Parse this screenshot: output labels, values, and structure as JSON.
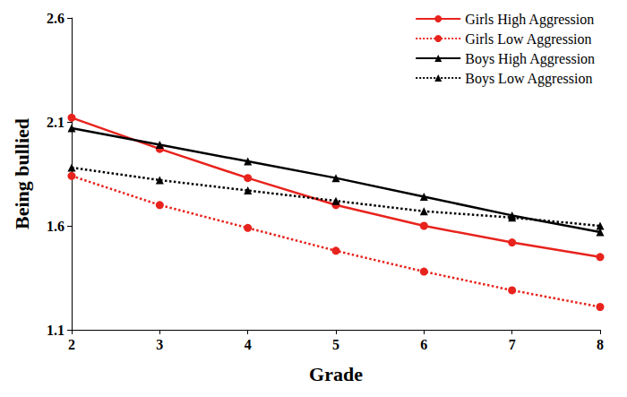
{
  "chart_data": {
    "type": "line",
    "x_label": "Grade",
    "y_label": "Being bullied",
    "x": [
      2,
      3,
      4,
      5,
      6,
      7,
      8
    ],
    "series": [
      {
        "name": "Girls High Aggression",
        "color": "#e8231d",
        "marker": "circle",
        "line_style": "solid",
        "values": [
          2.12,
          1.97,
          1.83,
          1.7,
          1.6,
          1.52,
          1.45
        ]
      },
      {
        "name": "Girls Low Aggression",
        "color": "#e8231d",
        "marker": "circle",
        "line_style": "dotted",
        "values": [
          1.84,
          1.7,
          1.59,
          1.48,
          1.38,
          1.29,
          1.21
        ]
      },
      {
        "name": "Boys High Aggression",
        "color": "#000000",
        "marker": "triangle",
        "line_style": "solid",
        "values": [
          2.07,
          1.99,
          1.91,
          1.83,
          1.74,
          1.65,
          1.57
        ]
      },
      {
        "name": "Boys Low Aggression",
        "color": "#000000",
        "marker": "triangle",
        "line_style": "dotted",
        "values": [
          1.88,
          1.82,
          1.77,
          1.72,
          1.67,
          1.64,
          1.6
        ]
      }
    ],
    "xlim": [
      2,
      8
    ],
    "xticks": [
      2,
      3,
      4,
      5,
      6,
      7,
      8
    ],
    "ylim": [
      1.1,
      2.6
    ],
    "yticks": [
      1.1,
      1.6,
      2.1,
      2.6
    ],
    "grid": false,
    "legend": "upper right"
  }
}
